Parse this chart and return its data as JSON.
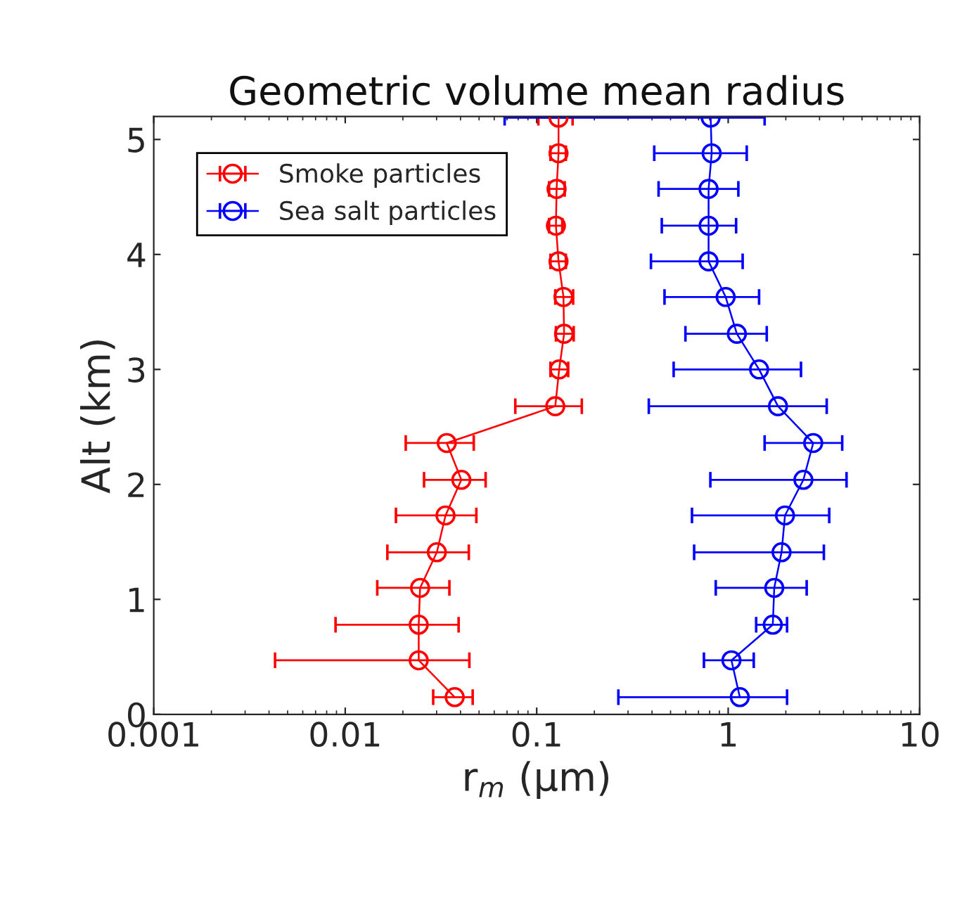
{
  "chart_data": {
    "type": "line",
    "title": "Geometric volume mean radius",
    "xlabel": "r$_{m}$ (μm)",
    "ylabel": "Alt (km)",
    "log": "x",
    "xlim": [
      0.001,
      10
    ],
    "xticks": [
      0.001,
      0.01,
      0.1,
      1,
      10
    ],
    "ylim": [
      0,
      5.2
    ],
    "yticks": [
      0,
      1,
      2,
      3,
      4,
      5
    ],
    "grid": false,
    "legend": "top left",
    "marker": "circle",
    "line_style": "solid",
    "series": [
      {
        "name": "Smoke particles",
        "color": "#ff0000",
        "x": [
          0.0373,
          0.0242,
          0.0242,
          0.0246,
          0.0301,
          0.0334,
          0.0404,
          0.0339,
          0.125,
          0.131,
          0.139,
          0.138,
          0.13,
          0.126,
          0.127,
          0.13,
          0.13
        ],
        "values": [
          0.15,
          0.47,
          0.78,
          1.1,
          1.41,
          1.73,
          2.04,
          2.36,
          2.68,
          3.0,
          3.31,
          3.63,
          3.94,
          4.25,
          4.57,
          4.88,
          5.19
        ],
        "xerrors": [
          [
            0.0288,
            0.0463
          ],
          [
            0.0043,
            0.0445
          ],
          [
            0.0089,
            0.0391
          ],
          [
            0.0147,
            0.035
          ],
          [
            0.0166,
            0.0442
          ],
          [
            0.0184,
            0.0484
          ],
          [
            0.0258,
            0.0541
          ],
          [
            0.0207,
            0.0469
          ],
          [
            0.0773,
            0.172
          ],
          [
            0.118,
            0.146
          ],
          [
            0.126,
            0.156
          ],
          [
            0.125,
            0.155
          ],
          [
            0.118,
            0.142
          ],
          [
            0.116,
            0.136
          ],
          [
            0.116,
            0.14
          ],
          [
            0.118,
            0.142
          ],
          [
            0.102,
            0.154
          ]
        ]
      },
      {
        "name": "Sea salt particles",
        "color": "#0000ff",
        "x": [
          1.15,
          1.04,
          1.71,
          1.74,
          1.9,
          1.98,
          2.47,
          2.78,
          1.82,
          1.45,
          1.11,
          0.97,
          0.79,
          0.79,
          0.79,
          0.82,
          0.81
        ],
        "values": [
          0.15,
          0.47,
          0.78,
          1.1,
          1.41,
          1.73,
          2.04,
          2.36,
          2.68,
          3.0,
          3.31,
          3.63,
          3.94,
          4.25,
          4.57,
          4.88,
          5.19
        ],
        "xerrors": [
          [
            0.267,
            2.03
          ],
          [
            0.747,
            1.36
          ],
          [
            1.4,
            2.03
          ],
          [
            0.861,
            2.57
          ],
          [
            0.664,
            3.16
          ],
          [
            0.647,
            3.37
          ],
          [
            0.807,
            4.15
          ],
          [
            1.55,
            3.94
          ],
          [
            0.385,
            3.27
          ],
          [
            0.519,
            2.4
          ],
          [
            0.598,
            1.59
          ],
          [
            0.465,
            1.45
          ],
          [
            0.395,
            1.19
          ],
          [
            0.45,
            1.1
          ],
          [
            0.433,
            1.13
          ],
          [
            0.411,
            1.25
          ],
          [
            0.068,
            1.55
          ]
        ]
      }
    ]
  }
}
